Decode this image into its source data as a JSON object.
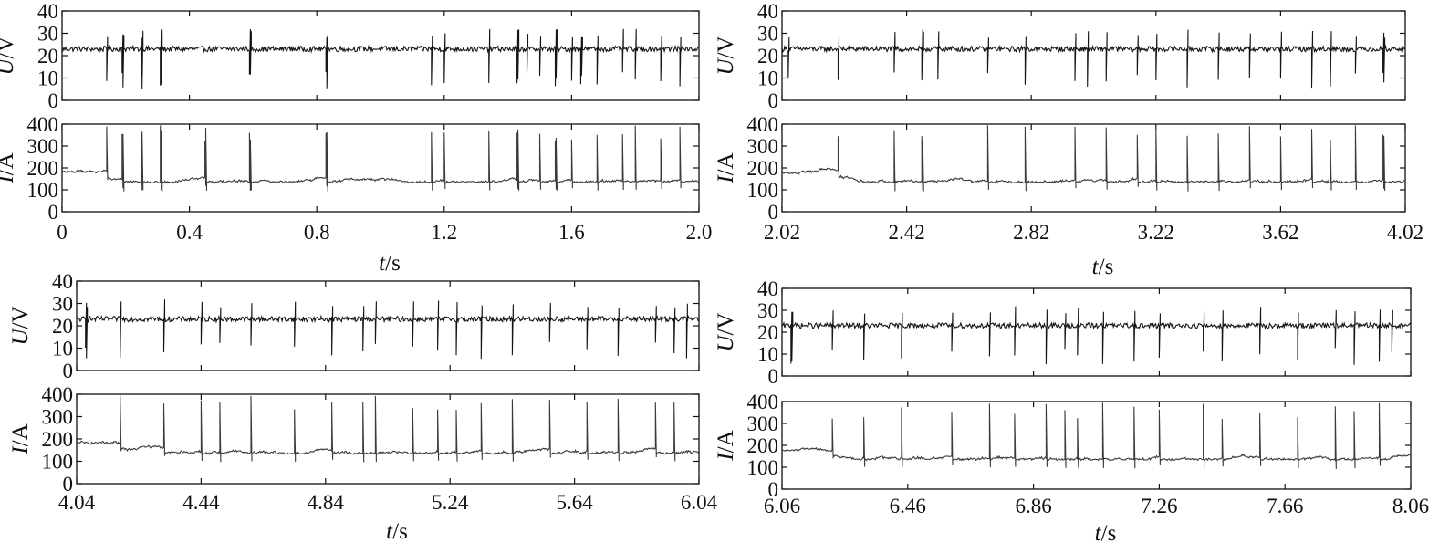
{
  "chart_data": [
    {
      "id": "panel-a",
      "type": "line",
      "x_label_var": "t",
      "x_label_unit": "/s",
      "x_range": [
        0,
        2.0
      ],
      "x_ticks": [
        "0",
        "0.4",
        "0.8",
        "1.2",
        "1.6",
        "2.0"
      ],
      "voltage": {
        "label_var": "U",
        "label_unit": "/V",
        "ylim": [
          0,
          40
        ],
        "y_ticks": [
          "0",
          "10",
          "20",
          "30",
          "40"
        ],
        "baseline": 23,
        "dips": [
          0.14,
          0.19,
          0.25,
          0.31,
          0.59,
          0.83,
          1.16,
          1.2,
          1.34,
          1.43,
          1.46,
          1.5,
          1.55,
          1.6,
          1.63,
          1.68,
          1.76,
          1.8,
          1.88,
          1.94
        ]
      },
      "current": {
        "label_var": "I",
        "label_unit": "/A",
        "ylim": [
          0,
          400
        ],
        "y_ticks": [
          "0",
          "100",
          "200",
          "300",
          "400"
        ],
        "baseline": 180,
        "spikes": [
          0.14,
          0.19,
          0.25,
          0.31,
          0.45,
          0.59,
          0.83,
          1.16,
          1.2,
          1.34,
          1.43,
          1.5,
          1.55,
          1.6,
          1.68,
          1.76,
          1.8,
          1.88,
          1.94
        ]
      }
    },
    {
      "id": "panel-b",
      "type": "line",
      "x_label_var": "t",
      "x_label_unit": "/s",
      "x_range": [
        2.02,
        4.02
      ],
      "x_ticks": [
        "2.02",
        "2.42",
        "2.82",
        "3.22",
        "3.62",
        "4.02"
      ],
      "voltage": {
        "label_var": "U",
        "label_unit": "/V",
        "ylim": [
          0,
          40
        ],
        "y_ticks": [
          "0",
          "10",
          "20",
          "30",
          "40"
        ],
        "baseline": 23,
        "dips": [
          2.04,
          2.2,
          2.38,
          2.47,
          2.52,
          2.68,
          2.8,
          2.96,
          3.0,
          3.06,
          3.16,
          3.22,
          3.32,
          3.42,
          3.52,
          3.62,
          3.72,
          3.78,
          3.86,
          3.95
        ]
      },
      "current": {
        "label_var": "I",
        "label_unit": "/A",
        "ylim": [
          0,
          400
        ],
        "y_ticks": [
          "0",
          "100",
          "200",
          "300",
          "400"
        ],
        "baseline": 180,
        "spikes": [
          2.2,
          2.38,
          2.47,
          2.68,
          2.8,
          2.96,
          3.06,
          3.16,
          3.22,
          3.32,
          3.42,
          3.52,
          3.62,
          3.72,
          3.78,
          3.86,
          3.95
        ]
      }
    },
    {
      "id": "panel-c",
      "type": "line",
      "x_label_var": "t",
      "x_label_unit": "/s",
      "x_range": [
        4.04,
        6.04
      ],
      "x_ticks": [
        "4.04",
        "4.44",
        "4.84",
        "5.24",
        "5.64",
        "6.04"
      ],
      "voltage": {
        "label_var": "U",
        "label_unit": "/V",
        "ylim": [
          0,
          40
        ],
        "y_ticks": [
          "0",
          "10",
          "20",
          "30",
          "40"
        ],
        "baseline": 23,
        "dips": [
          4.07,
          4.18,
          4.32,
          4.44,
          4.5,
          4.6,
          4.74,
          4.86,
          4.96,
          5.0,
          5.12,
          5.2,
          5.26,
          5.34,
          5.44,
          5.56,
          5.68,
          5.78,
          5.9,
          5.96,
          6.0
        ]
      },
      "current": {
        "label_var": "I",
        "label_unit": "/A",
        "ylim": [
          0,
          400
        ],
        "y_ticks": [
          "0",
          "100",
          "200",
          "300",
          "400"
        ],
        "baseline": 180,
        "spikes": [
          4.18,
          4.32,
          4.44,
          4.5,
          4.6,
          4.74,
          4.86,
          4.96,
          5.0,
          5.12,
          5.2,
          5.26,
          5.34,
          5.44,
          5.56,
          5.68,
          5.78,
          5.9,
          5.96
        ]
      }
    },
    {
      "id": "panel-d",
      "type": "line",
      "x_label_var": "t",
      "x_label_unit": "/s",
      "x_range": [
        6.06,
        8.06
      ],
      "x_ticks": [
        "6.06",
        "6.46",
        "6.86",
        "7.26",
        "7.66",
        "8.06"
      ],
      "voltage": {
        "label_var": "U",
        "label_unit": "/V",
        "ylim": [
          0,
          40
        ],
        "y_ticks": [
          "0",
          "10",
          "20",
          "30",
          "40"
        ],
        "baseline": 23,
        "dips": [
          6.09,
          6.22,
          6.32,
          6.44,
          6.6,
          6.72,
          6.8,
          6.9,
          6.96,
          7.0,
          7.08,
          7.18,
          7.26,
          7.4,
          7.46,
          7.58,
          7.7,
          7.82,
          7.88,
          7.96,
          8.0
        ]
      },
      "current": {
        "label_var": "I",
        "label_unit": "/A",
        "ylim": [
          0,
          400
        ],
        "y_ticks": [
          "0",
          "100",
          "200",
          "300",
          "400"
        ],
        "baseline": 180,
        "spikes": [
          6.22,
          6.32,
          6.44,
          6.6,
          6.72,
          6.8,
          6.9,
          6.96,
          7.0,
          7.08,
          7.18,
          7.26,
          7.4,
          7.46,
          7.58,
          7.7,
          7.82,
          7.88,
          7.96
        ]
      }
    }
  ]
}
